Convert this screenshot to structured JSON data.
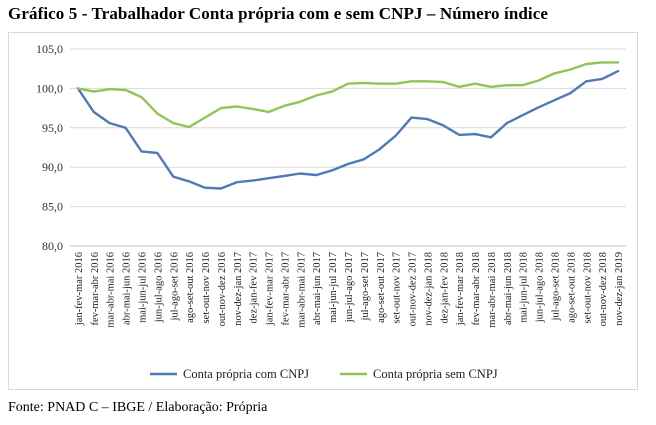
{
  "title": "Gráfico 5 - Trabalhador Conta própria com e sem CNPJ – Número índice",
  "source": "Fonte: PNAD C – IBGE / Elaboração: Própria",
  "chart_data": {
    "type": "line",
    "title": "Gráfico 5 - Trabalhador Conta própria com e sem CNPJ – Número índice",
    "xlabel": "",
    "ylabel": "",
    "ylim": [
      80,
      105
    ],
    "yticks": [
      80,
      85,
      90,
      95,
      100,
      105
    ],
    "ytick_labels": [
      "80,0",
      "85,0",
      "90,0",
      "95,0",
      "100,0",
      "105,0"
    ],
    "grid": "horizontal",
    "legend": "bottom",
    "categories": [
      "jan-fev-mar 2016",
      "fev-mar-abr 2016",
      "mar-abr-mai 2016",
      "abr-mai-jun 2016",
      "mai-jun-jul 2016",
      "jun-jul-ago 2016",
      "jul-ago-set 2016",
      "ago-set-out 2016",
      "set-out-nov 2016",
      "out-nov-dez 2016",
      "nov-dez-jan 2017",
      "dez-jan-fev 2017",
      "jan-fev-mar 2017",
      "fev-mar-abr 2017",
      "mar-abr-mai 2017",
      "abr-mai-jun 2017",
      "mai-jun-jul 2017",
      "jun-jul-ago 2017",
      "jul-ago-set 2017",
      "ago-set-out 2017",
      "set-out-nov 2017",
      "out-nov-dez 2017",
      "nov-dez-jan 2018",
      "dez-jan-fev 2018",
      "jan-fev-mar 2018",
      "fev-mar-abr 2018",
      "mar-abr-mai 2018",
      "abr-mai-jun 2018",
      "mai-jun-jul 2018",
      "jun-jul-ago 2018",
      "jul-ago-set 2018",
      "ago-set-out 2018",
      "set-out-nov 2018",
      "out-nov-dez 2018",
      "nov-dez-jan 2019"
    ],
    "series": [
      {
        "name": "Conta própria com CNPJ",
        "color": "#4f7ab4",
        "values": [
          100.0,
          97.0,
          95.6,
          95.0,
          92.0,
          91.8,
          88.8,
          88.2,
          87.4,
          87.3,
          88.1,
          88.3,
          88.6,
          88.9,
          89.2,
          89.0,
          89.6,
          90.4,
          91.0,
          92.3,
          94.0,
          96.3,
          96.1,
          95.3,
          94.1,
          94.2,
          93.8,
          95.6,
          96.6,
          97.6,
          98.5,
          99.4,
          100.9,
          101.2,
          102.2
        ]
      },
      {
        "name": "Conta própria sem CNPJ",
        "color": "#90c458",
        "values": [
          100.0,
          99.6,
          99.9,
          99.8,
          98.9,
          96.8,
          95.6,
          95.1,
          96.3,
          97.5,
          97.7,
          97.4,
          97.0,
          97.8,
          98.3,
          99.1,
          99.6,
          100.6,
          100.7,
          100.6,
          100.6,
          100.9,
          100.9,
          100.8,
          100.2,
          100.6,
          100.2,
          100.4,
          100.4,
          101.0,
          101.9,
          102.4,
          103.1,
          103.3,
          103.3
        ]
      }
    ]
  }
}
